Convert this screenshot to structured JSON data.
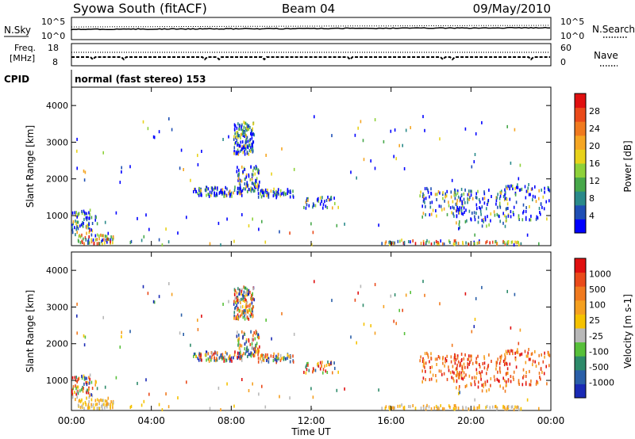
{
  "header": {
    "station": "Syowa South (fitACF)",
    "beam": "Beam 04",
    "date": "09/May/2010"
  },
  "status_panels": {
    "nsky_label": "N.Sky",
    "nsearch_label": "N.Search",
    "freq_label_1": "Freq.",
    "freq_label_2": "[MHz]",
    "nave_label": "Nave",
    "cpid_label": "CPID",
    "cpid_text": "normal (fast stereo) 153",
    "noise_ticks_left": [
      "10^5",
      "10^0"
    ],
    "noise_ticks_right": [
      "10^5",
      "10^0"
    ],
    "freq_ticks": [
      "18",
      "8"
    ],
    "nave_ticks": [
      "60",
      "0"
    ]
  },
  "chart_data": [
    {
      "type": "heatmap",
      "name": "power",
      "ylabel": "Slant Range [km]",
      "yticks": [
        "4000",
        "3000",
        "2000",
        "1000"
      ],
      "ylim": [
        180,
        4500
      ],
      "xlim": [
        0,
        24
      ],
      "colorbar": {
        "label": "Power [dB]",
        "ticks": [
          "28",
          "24",
          "20",
          "16",
          "12",
          "8",
          "4"
        ],
        "colors": [
          "#0000ff",
          "#1f4fb5",
          "#2a8a8a",
          "#47a84a",
          "#8ed13a",
          "#e8d21a",
          "#f5a623",
          "#f07a1f",
          "#ea4a1a",
          "#e01010"
        ]
      }
    },
    {
      "type": "heatmap",
      "name": "velocity",
      "ylabel": "Slant Range [km]",
      "yticks": [
        "4000",
        "3000",
        "2000",
        "1000"
      ],
      "ylim": [
        180,
        4500
      ],
      "xlim": [
        0,
        24
      ],
      "xticks": [
        "00:00",
        "04:00",
        "08:00",
        "12:00",
        "16:00",
        "20:00",
        "00:00"
      ],
      "xlabel": "Time UT",
      "colorbar": {
        "label": "Velocity [m s-1]",
        "ticks": [
          "1000",
          "500",
          "100",
          "25",
          "-25",
          "-100",
          "-500",
          "-1000"
        ],
        "colors": [
          "#1a2ab5",
          "#2a5fa8",
          "#2d8a6a",
          "#57c03a",
          "#b8b8b8",
          "#f5c200",
          "#f5a020",
          "#f07a1f",
          "#ea4a1a",
          "#e01010"
        ]
      }
    }
  ]
}
